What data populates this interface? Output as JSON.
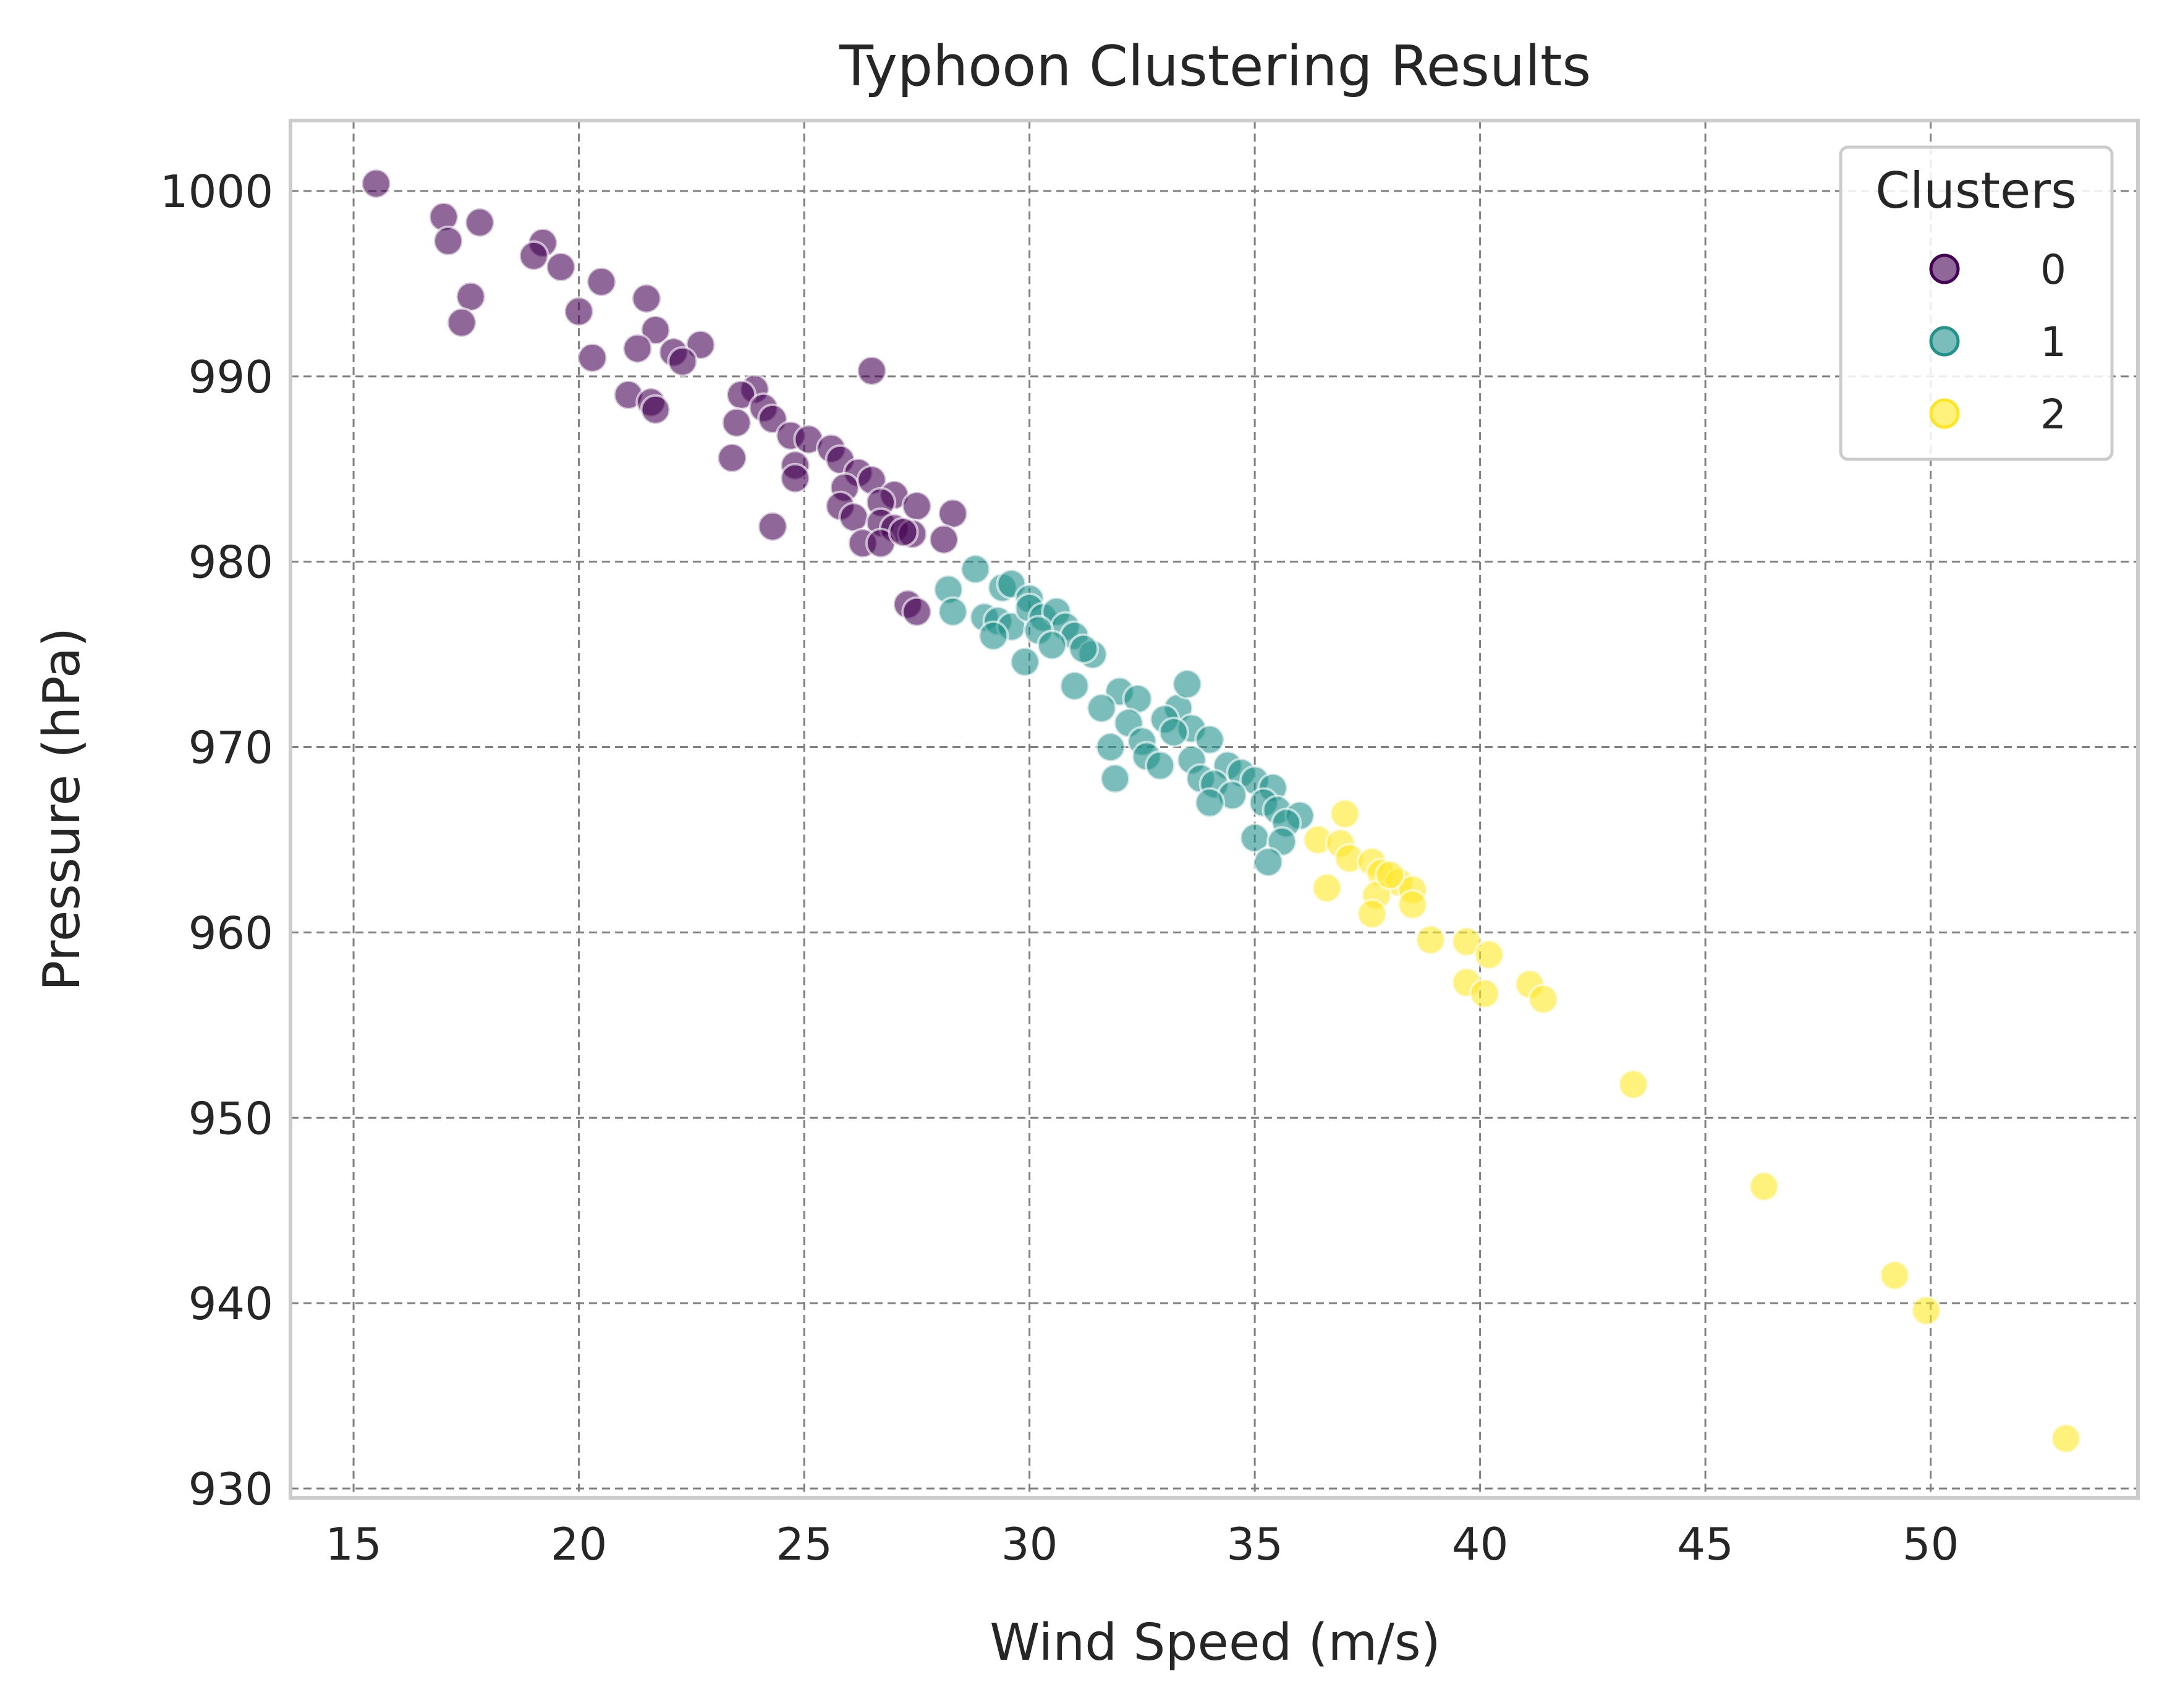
{
  "chart_data": {
    "type": "scatter",
    "title": "Typhoon Clustering Results",
    "xlabel": "Wind Speed (m/s)",
    "ylabel": "Pressure (hPa)",
    "xlim": [
      13.6,
      54.6
    ],
    "ylim": [
      929.5,
      1003.8
    ],
    "xticks": [
      15,
      20,
      25,
      30,
      35,
      40,
      45,
      50
    ],
    "yticks": [
      930,
      940,
      950,
      960,
      970,
      980,
      990,
      1000
    ],
    "grid": true,
    "legend": {
      "title": "Clusters",
      "position": "top-right"
    },
    "series": [
      {
        "name": "0",
        "color": "#440154",
        "points": [
          [
            15.5,
            1000.4
          ],
          [
            17.0,
            998.6
          ],
          [
            17.8,
            998.3
          ],
          [
            17.1,
            997.3
          ],
          [
            19.2,
            997.2
          ],
          [
            19.0,
            996.5
          ],
          [
            19.6,
            995.9
          ],
          [
            20.5,
            995.1
          ],
          [
            17.6,
            994.3
          ],
          [
            21.5,
            994.2
          ],
          [
            20.0,
            993.5
          ],
          [
            17.4,
            992.9
          ],
          [
            21.7,
            992.5
          ],
          [
            22.7,
            991.7
          ],
          [
            21.3,
            991.5
          ],
          [
            22.1,
            991.3
          ],
          [
            20.3,
            991.0
          ],
          [
            22.3,
            990.8
          ],
          [
            26.5,
            990.3
          ],
          [
            21.1,
            989.0
          ],
          [
            23.9,
            989.3
          ],
          [
            23.6,
            989.0
          ],
          [
            21.6,
            988.6
          ],
          [
            21.7,
            988.2
          ],
          [
            24.1,
            988.3
          ],
          [
            23.5,
            987.5
          ],
          [
            24.3,
            987.7
          ],
          [
            24.7,
            986.8
          ],
          [
            25.1,
            986.6
          ],
          [
            25.6,
            986.1
          ],
          [
            25.8,
            985.5
          ],
          [
            23.4,
            985.6
          ],
          [
            24.8,
            985.2
          ],
          [
            26.2,
            984.8
          ],
          [
            24.8,
            984.5
          ],
          [
            25.9,
            984.0
          ],
          [
            26.5,
            984.4
          ],
          [
            27.0,
            983.6
          ],
          [
            27.5,
            983.0
          ],
          [
            26.7,
            983.2
          ],
          [
            25.8,
            983.0
          ],
          [
            26.1,
            982.4
          ],
          [
            28.3,
            982.6
          ],
          [
            26.7,
            982.1
          ],
          [
            27.0,
            981.8
          ],
          [
            27.4,
            981.5
          ],
          [
            24.3,
            981.9
          ],
          [
            28.1,
            981.2
          ],
          [
            26.3,
            981.0
          ],
          [
            26.7,
            981.0
          ],
          [
            27.2,
            981.6
          ],
          [
            27.3,
            977.7
          ],
          [
            27.5,
            977.3
          ]
        ]
      },
      {
        "name": "1",
        "color": "#21918c",
        "points": [
          [
            28.2,
            978.5
          ],
          [
            28.8,
            979.6
          ],
          [
            29.4,
            978.6
          ],
          [
            29.6,
            978.8
          ],
          [
            30.0,
            978.0
          ],
          [
            28.3,
            977.3
          ],
          [
            29.0,
            977.0
          ],
          [
            29.3,
            976.8
          ],
          [
            29.6,
            976.5
          ],
          [
            30.0,
            977.5
          ],
          [
            30.3,
            977.0
          ],
          [
            30.6,
            977.3
          ],
          [
            30.8,
            976.5
          ],
          [
            29.2,
            976.0
          ],
          [
            30.2,
            976.3
          ],
          [
            31.0,
            976.0
          ],
          [
            30.5,
            975.5
          ],
          [
            31.4,
            975.0
          ],
          [
            29.9,
            974.6
          ],
          [
            31.2,
            975.3
          ],
          [
            31.0,
            973.3
          ],
          [
            32.0,
            973.0
          ],
          [
            32.4,
            972.6
          ],
          [
            31.6,
            972.1
          ],
          [
            33.3,
            972.1
          ],
          [
            32.2,
            971.3
          ],
          [
            33.0,
            971.5
          ],
          [
            33.6,
            971.0
          ],
          [
            33.5,
            973.4
          ],
          [
            32.5,
            970.3
          ],
          [
            31.8,
            970.0
          ],
          [
            33.2,
            970.8
          ],
          [
            34.0,
            970.4
          ],
          [
            32.6,
            969.5
          ],
          [
            32.9,
            969.0
          ],
          [
            33.6,
            969.3
          ],
          [
            34.4,
            969.0
          ],
          [
            34.7,
            968.6
          ],
          [
            31.9,
            968.3
          ],
          [
            33.8,
            968.3
          ],
          [
            34.1,
            968.0
          ],
          [
            35.0,
            968.2
          ],
          [
            35.4,
            967.8
          ],
          [
            34.5,
            967.4
          ],
          [
            35.2,
            967.0
          ],
          [
            34.0,
            967.0
          ],
          [
            35.5,
            966.6
          ],
          [
            36.0,
            966.3
          ],
          [
            35.7,
            965.9
          ],
          [
            35.0,
            965.1
          ],
          [
            35.6,
            964.9
          ],
          [
            35.3,
            963.8
          ]
        ]
      },
      {
        "name": "2",
        "color": "#fde725",
        "points": [
          [
            36.4,
            965.0
          ],
          [
            37.0,
            966.4
          ],
          [
            36.9,
            964.8
          ],
          [
            37.1,
            964.0
          ],
          [
            37.6,
            963.8
          ],
          [
            37.8,
            963.2
          ],
          [
            38.2,
            962.7
          ],
          [
            38.5,
            962.3
          ],
          [
            36.6,
            962.4
          ],
          [
            37.7,
            962.0
          ],
          [
            38.0,
            963.1
          ],
          [
            37.6,
            961.0
          ],
          [
            38.5,
            961.5
          ],
          [
            38.9,
            959.6
          ],
          [
            39.7,
            959.5
          ],
          [
            40.2,
            958.8
          ],
          [
            39.7,
            957.3
          ],
          [
            40.1,
            956.7
          ],
          [
            41.1,
            957.2
          ],
          [
            41.4,
            956.4
          ],
          [
            43.4,
            951.8
          ],
          [
            46.3,
            946.3
          ],
          [
            49.2,
            941.5
          ],
          [
            49.9,
            939.6
          ],
          [
            53.0,
            932.7
          ]
        ]
      }
    ]
  }
}
